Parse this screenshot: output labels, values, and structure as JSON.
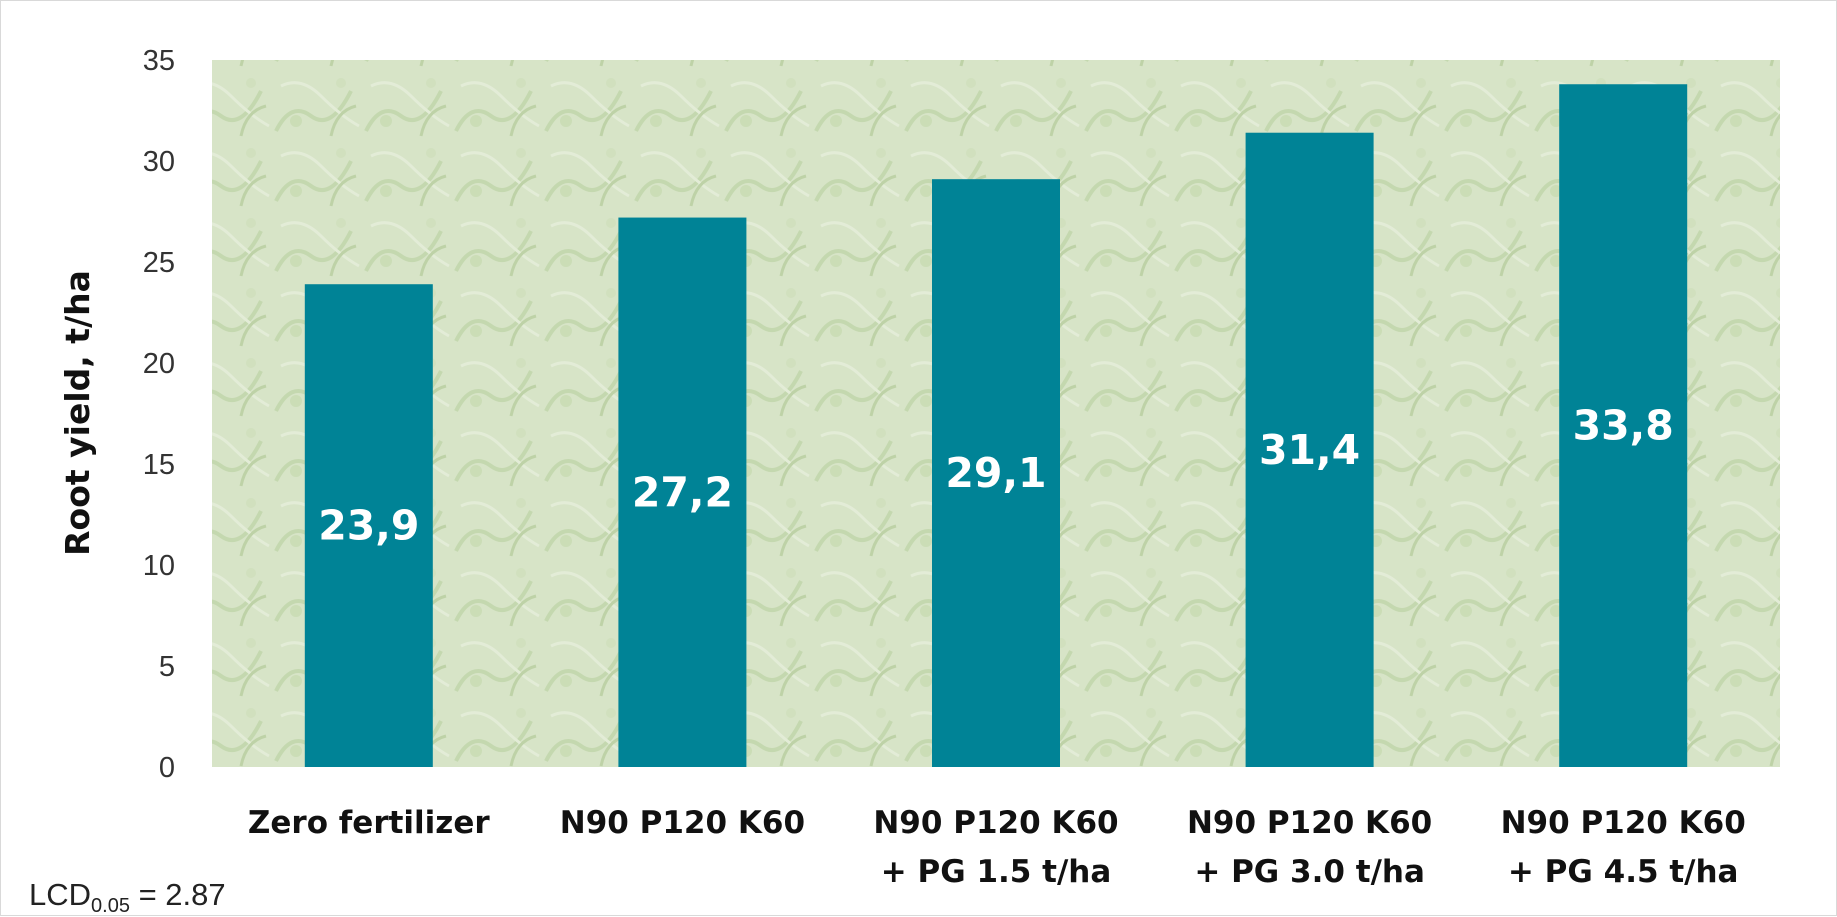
{
  "chart_data": {
    "type": "bar",
    "title": "",
    "xlabel": "",
    "ylabel": "Root yield, t/ha",
    "ylim": [
      0,
      35
    ],
    "yticks": [
      0,
      5,
      10,
      15,
      20,
      25,
      30,
      35
    ],
    "grid": false,
    "legend": "none",
    "bar_color": "#008396",
    "categories": [
      "Zero fertilizer",
      "N90 P120 K60",
      "N90 P120 K60 + PG 1.5 t/ha",
      "N90 P120 K60 + PG 3.0 t/ha",
      "N90 P120 K60 + PG 4.5 t/ha"
    ],
    "category_lines": [
      [
        "Zero fertilizer"
      ],
      [
        "N90 P120 K60"
      ],
      [
        "N90 P120 K60",
        "+ PG 1.5 t/ha"
      ],
      [
        "N90 P120 K60",
        "+ PG 3.0 t/ha"
      ],
      [
        "N90 P120 K60",
        "+ PG 4.5 t/ha"
      ]
    ],
    "values": [
      23.9,
      27.2,
      29.1,
      31.4,
      33.8
    ],
    "data_labels": [
      "23,9",
      "27,2",
      "29,1",
      "31,4",
      "33,8"
    ]
  },
  "footnote": {
    "prefix": "LCD",
    "subscript": "0.05",
    "suffix": " = 2.87"
  }
}
